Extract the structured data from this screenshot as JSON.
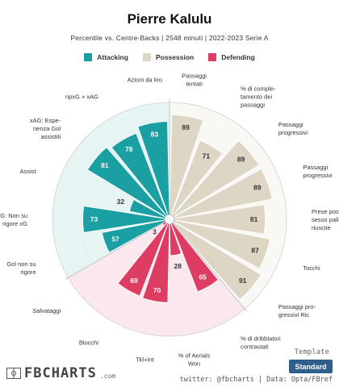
{
  "title": "Pierre Kalulu",
  "subtitle": "Percentile vs. Centre-Backs | 2548 minuti | 2022-2023 Serie A",
  "legend": [
    {
      "label": "Attacking",
      "color": "#1a9fa3"
    },
    {
      "label": "Possession",
      "color": "#ded6c5"
    },
    {
      "label": "Defending",
      "color": "#dd3d63"
    }
  ],
  "template": {
    "label": "Template",
    "value": "Standard"
  },
  "credits": "twitter: @fbcharts | Data: Opta/FBref",
  "brand": {
    "name": "FBCHARTS",
    "suffix": ".com"
  },
  "colors": {
    "attacking": "#1a9fa3",
    "possession": "#ded6c5",
    "defending": "#dd3d63",
    "attacking_bg": "#e6f4f4",
    "possession_bg": "#f9f8f5",
    "defending_bg": "#fbe8ee"
  },
  "chart_data": {
    "type": "polar_bar",
    "title": "Pierre Kalulu",
    "subtitle": "Percentile vs. Centre-Backs | 2548 minuti | 2022-2023 Serie A",
    "rlim": [
      0,
      100
    ],
    "series": [
      {
        "name": "Attacking",
        "color": "#1a9fa3",
        "bars": [
          {
            "label": "Azioni da tiro",
            "value": 83
          },
          {
            "label": "npxG + xAG",
            "value": 78
          },
          {
            "label": "xAG: Esperienza Gol assistiti",
            "value": 81
          },
          {
            "label": "Assist",
            "value": 32
          },
          {
            "label": "npxG: Non su rigore xG",
            "value": 73
          },
          {
            "label": "Gol non su rigore",
            "value": 57
          }
        ]
      },
      {
        "name": "Defending",
        "color": "#dd3d63",
        "bars": [
          {
            "label": "Salvataggi",
            "value": 3
          },
          {
            "label": "Blocchi",
            "value": 69
          },
          {
            "label": "Tkl+Int",
            "value": 70
          },
          {
            "label": "% of Aerials Won",
            "value": 28
          },
          {
            "label": "% di dribblatori contrastati",
            "value": 65
          }
        ]
      },
      {
        "name": "Possession",
        "color": "#ded6c5",
        "bars": [
          {
            "label": "Passaggi progressivi Ric",
            "value": 91
          },
          {
            "label": "Tocchi",
            "value": 87
          },
          {
            "label": "Prese possesso palla riuscite",
            "value": 81
          },
          {
            "label": "Passaggi progressivi",
            "value": 89
          },
          {
            "label": "Passaggi progressivi",
            "value": 89
          },
          {
            "label": "% di completamento dei passaggi",
            "value": 71
          },
          {
            "label": "Passaggi tentati",
            "value": 89
          }
        ]
      }
    ],
    "bars_clockwise_from_top": [
      {
        "label": "Passaggi tentati",
        "value": 89,
        "group": "Possession",
        "label_lines": [
          "Passaggi",
          "tentati"
        ]
      },
      {
        "label": "% di completamento dei passaggi",
        "value": 71,
        "group": "Possession",
        "label_lines": [
          "% di comple-",
          "tamento dei",
          "passaggi"
        ]
      },
      {
        "label": "Passaggi progressivi",
        "value": 89,
        "group": "Possession",
        "label_lines": [
          "Passaggi",
          "progressivi"
        ]
      },
      {
        "label": "Passaggi progressivi",
        "value": 89,
        "group": "Possession",
        "label_lines": [
          "Passaggi",
          "progressivi"
        ]
      },
      {
        "label": "Prese possesso palla riuscite",
        "value": 81,
        "group": "Possession",
        "label_lines": [
          "Prese pos-",
          "sesso palla",
          "riuscite"
        ]
      },
      {
        "label": "Tocchi",
        "value": 87,
        "group": "Possession",
        "label_lines": [
          "Tocchi"
        ]
      },
      {
        "label": "Passaggi progressivi Ric",
        "value": 91,
        "group": "Possession",
        "label_lines": [
          "Passaggi pro-",
          "gressivi Ric"
        ]
      },
      {
        "label": "% di dribblatori contrastati",
        "value": 65,
        "group": "Defending",
        "label_lines": [
          "% di dribblatori",
          "contrastati"
        ]
      },
      {
        "label": "% of Aerials Won",
        "value": 28,
        "group": "Defending",
        "label_lines": [
          "% of Aerials",
          "Won"
        ]
      },
      {
        "label": "Tkl+Int",
        "value": 70,
        "group": "Defending",
        "label_lines": [
          "Tkl+Int"
        ]
      },
      {
        "label": "Blocchi",
        "value": 69,
        "group": "Defending",
        "label_lines": [
          "Blocchi"
        ]
      },
      {
        "label": "Salvataggi",
        "value": 3,
        "group": "Defending",
        "label_lines": [
          "Salvataggi"
        ]
      },
      {
        "label": "Gol non su rigore",
        "value": 57,
        "group": "Attacking",
        "label_lines": [
          "Gol non su",
          "rigore"
        ]
      },
      {
        "label": "npxG: Non su rigore xG",
        "value": 73,
        "group": "Attacking",
        "label_lines": [
          "npxG: Non su",
          "rigore xG"
        ]
      },
      {
        "label": "Assist",
        "value": 32,
        "group": "Attacking",
        "label_lines": [
          "Assist"
        ]
      },
      {
        "label": "xAG: Esperienza Gol assistiti",
        "value": 81,
        "group": "Attacking",
        "label_lines": [
          "xAG: Espe-",
          "rienza Gol",
          "assistiti"
        ]
      },
      {
        "label": "npxG + xAG",
        "value": 78,
        "group": "Attacking",
        "label_lines": [
          "npxG + xAG"
        ]
      },
      {
        "label": "Azioni da tiro",
        "value": 83,
        "group": "Attacking",
        "label_lines": [
          "Azioni da tiro"
        ]
      }
    ]
  }
}
